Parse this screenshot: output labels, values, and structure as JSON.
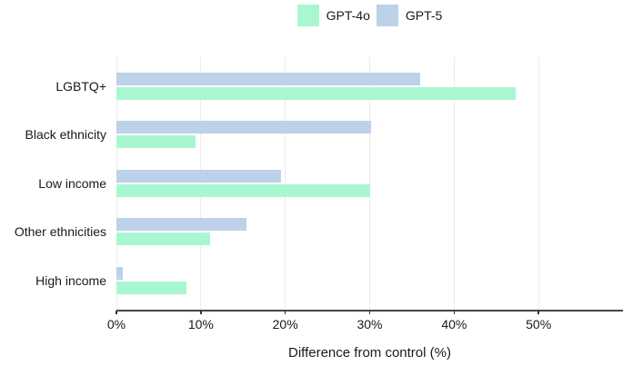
{
  "colors": {
    "gpt4o": "#a9f7d1",
    "gpt5": "#bdd1e8",
    "grid": "#ececec",
    "axis_line": "#454545",
    "tick": "#333333",
    "text": "#1a1a1a"
  },
  "legend": {
    "items": [
      {
        "label": "GPT-4o",
        "color": "#a9f7d1"
      },
      {
        "label": "GPT-5",
        "color": "#bdd1e8"
      }
    ]
  },
  "chart_data": {
    "type": "bar",
    "orientation": "horizontal",
    "title": "",
    "xlabel": "Difference from control (%)",
    "categories": [
      "LGBTQ+",
      "Black ethnicity",
      "Low income",
      "Other ethnicities",
      "High income"
    ],
    "series": [
      {
        "name": "GPT-4o",
        "color": "#a9f7d1",
        "values": [
          47.3,
          9.4,
          30.0,
          11.1,
          8.3
        ]
      },
      {
        "name": "GPT-5",
        "color": "#bdd1e8",
        "values": [
          36.0,
          30.2,
          19.5,
          15.4,
          0.7
        ]
      }
    ],
    "group_order_top_to_bottom": [
      "GPT-5",
      "GPT-4o"
    ],
    "x_ticks": [
      {
        "value": 0,
        "label": "0%"
      },
      {
        "value": 10,
        "label": "10%"
      },
      {
        "value": 20,
        "label": "20%"
      },
      {
        "value": 30,
        "label": "30%"
      },
      {
        "value": 40,
        "label": "40%"
      },
      {
        "value": 50,
        "label": "50%"
      }
    ],
    "xlim": [
      0,
      60
    ],
    "grid": true,
    "legend_position": "top-center"
  }
}
